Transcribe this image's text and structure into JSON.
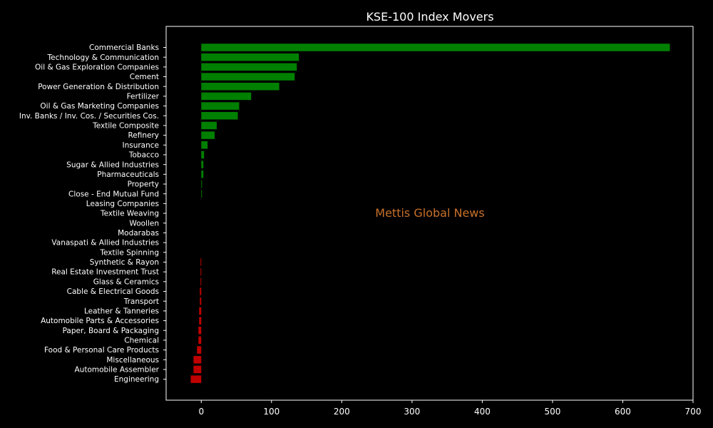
{
  "chart_data": {
    "type": "bar",
    "orientation": "horizontal",
    "title": "KSE-100 Index Movers",
    "watermark": "Mettis Global News",
    "xlim": [
      -50,
      700
    ],
    "xticks": [
      0,
      100,
      200,
      300,
      400,
      500,
      600,
      700
    ],
    "grid": false,
    "colors": {
      "background": "#000000",
      "positive": "#008000",
      "negative": "#c00000",
      "text": "#ffffff",
      "watermark": "#c8702a"
    },
    "categories": [
      "Commercial Banks",
      "Technology & Communication",
      "Oil & Gas Exploration Companies",
      "Cement",
      "Power Generation & Distribution",
      "Fertilizer",
      "Oil & Gas Marketing Companies",
      "Inv. Banks / Inv. Cos. / Securities Cos.",
      "Textile Composite",
      "Refinery",
      "Insurance",
      "Tobacco",
      "Sugar & Allied Industries",
      "Pharmaceuticals",
      "Property",
      "Close - End Mutual Fund",
      "Leasing Companies",
      "Textile Weaving",
      "Woollen",
      "Modarabas",
      "Vanaspati & Allied Industries",
      "Textile Spinning",
      "Synthetic & Rayon",
      "Real Estate Investment Trust",
      "Glass & Ceramics",
      "Cable & Electrical Goods",
      "Transport",
      "Leather & Tanneries",
      "Automobile Parts & Accessories",
      "Paper, Board & Packaging",
      "Chemical",
      "Food & Personal Care Products",
      "Miscellaneous",
      "Automobile Assembler",
      "Engineering"
    ],
    "values": [
      667,
      139,
      136,
      133,
      111,
      71,
      54,
      52,
      22,
      19,
      9,
      4,
      3,
      3,
      1,
      1,
      0,
      0,
      0,
      0,
      0,
      0,
      -1,
      -1,
      -1,
      -2,
      -2,
      -3,
      -3,
      -4,
      -4,
      -6,
      -11,
      -11,
      -15
    ]
  }
}
